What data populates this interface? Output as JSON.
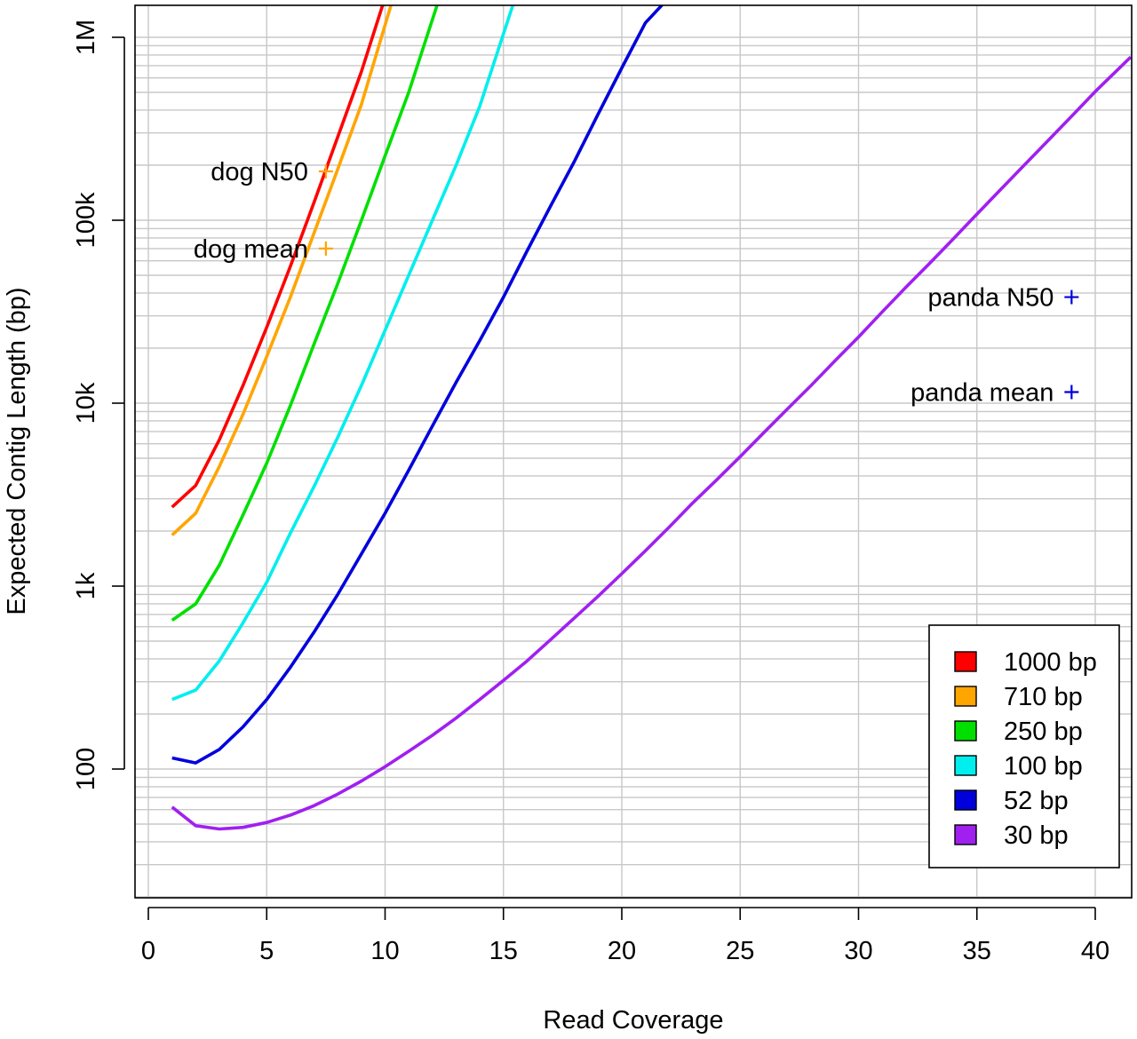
{
  "chart_data": {
    "type": "line",
    "title": "",
    "xlabel": "Read Coverage",
    "ylabel": "Expected Contig Length (bp)",
    "x_scale": "linear",
    "y_scale": "log",
    "xlim": [
      -0.5,
      41.5
    ],
    "ylim": [
      23,
      1500000
    ],
    "grid": true,
    "x_ticks": [
      0,
      5,
      10,
      15,
      20,
      25,
      30,
      35,
      40
    ],
    "y_ticks": [
      {
        "value": 100,
        "label": "100"
      },
      {
        "value": 1000,
        "label": "1k"
      },
      {
        "value": 10000,
        "label": "10k"
      },
      {
        "value": 100000,
        "label": "100k"
      },
      {
        "value": 1000000,
        "label": "1M"
      }
    ],
    "legend_position": "bottom-right",
    "series": [
      {
        "name": "1000 bp",
        "color": "#ff0000",
        "points": [
          [
            1,
            2700
          ],
          [
            2,
            3550
          ],
          [
            3,
            6300
          ],
          [
            4,
            12500
          ],
          [
            5,
            26000
          ],
          [
            6,
            56000
          ],
          [
            7,
            125000
          ],
          [
            8,
            285000
          ],
          [
            9,
            650000
          ],
          [
            9.9,
            1500000
          ]
        ]
      },
      {
        "name": "710 bp",
        "color": "#ffa500",
        "points": [
          [
            1,
            1900
          ],
          [
            2,
            2500
          ],
          [
            3,
            4500
          ],
          [
            4,
            8700
          ],
          [
            5,
            18000
          ],
          [
            6,
            38000
          ],
          [
            7,
            85000
          ],
          [
            8,
            190000
          ],
          [
            9,
            430000
          ],
          [
            10.25,
            1500000
          ]
        ]
      },
      {
        "name": "250 bp",
        "color": "#00e000",
        "points": [
          [
            1,
            650
          ],
          [
            2,
            800
          ],
          [
            3,
            1300
          ],
          [
            4,
            2450
          ],
          [
            5,
            4700
          ],
          [
            6,
            9700
          ],
          [
            7,
            21000
          ],
          [
            8,
            45000
          ],
          [
            9,
            100000
          ],
          [
            10,
            225000
          ],
          [
            11,
            500000
          ],
          [
            12.2,
            1500000
          ]
        ]
      },
      {
        "name": "100 bp",
        "color": "#00eeee",
        "points": [
          [
            1,
            240
          ],
          [
            2,
            270
          ],
          [
            3,
            390
          ],
          [
            4,
            630
          ],
          [
            5,
            1050
          ],
          [
            6,
            1950
          ],
          [
            7,
            3500
          ],
          [
            8,
            6500
          ],
          [
            9,
            12500
          ],
          [
            10,
            25000
          ],
          [
            11,
            50000
          ],
          [
            12,
            100000
          ],
          [
            13,
            200000
          ],
          [
            14,
            420000
          ],
          [
            15.4,
            1500000
          ]
        ]
      },
      {
        "name": "52 bp",
        "color": "#0000dd",
        "points": [
          [
            1,
            115
          ],
          [
            2,
            108
          ],
          [
            3,
            128
          ],
          [
            4,
            170
          ],
          [
            5,
            240
          ],
          [
            6,
            360
          ],
          [
            7,
            560
          ],
          [
            8,
            900
          ],
          [
            9,
            1500
          ],
          [
            10,
            2500
          ],
          [
            11,
            4300
          ],
          [
            12,
            7500
          ],
          [
            13,
            13000
          ],
          [
            14,
            22000
          ],
          [
            15,
            38000
          ],
          [
            16,
            68000
          ],
          [
            17,
            120000
          ],
          [
            18,
            210000
          ],
          [
            19,
            380000
          ],
          [
            20,
            680000
          ],
          [
            21,
            1200000
          ],
          [
            21.7,
            1500000
          ]
        ]
      },
      {
        "name": "30 bp",
        "color": "#a020f0",
        "points": [
          [
            1,
            62
          ],
          [
            2,
            49
          ],
          [
            3,
            47
          ],
          [
            4,
            48
          ],
          [
            5,
            51
          ],
          [
            6,
            56
          ],
          [
            7,
            63
          ],
          [
            8,
            73
          ],
          [
            9,
            86
          ],
          [
            10,
            103
          ],
          [
            11,
            125
          ],
          [
            12,
            153
          ],
          [
            13,
            190
          ],
          [
            14,
            240
          ],
          [
            15,
            305
          ],
          [
            16,
            390
          ],
          [
            17,
            510
          ],
          [
            18,
            670
          ],
          [
            19,
            880
          ],
          [
            20,
            1170
          ],
          [
            21,
            1560
          ],
          [
            22,
            2100
          ],
          [
            23,
            2850
          ],
          [
            24,
            3800
          ],
          [
            25,
            5100
          ],
          [
            26,
            6900
          ],
          [
            27,
            9300
          ],
          [
            28,
            12500
          ],
          [
            29,
            17000
          ],
          [
            30,
            23000
          ],
          [
            31,
            31500
          ],
          [
            32,
            43000
          ],
          [
            33,
            58000
          ],
          [
            34,
            79000
          ],
          [
            35,
            108000
          ],
          [
            36,
            147000
          ],
          [
            37,
            200000
          ],
          [
            38,
            272000
          ],
          [
            39,
            370000
          ],
          [
            40,
            505000
          ],
          [
            41.5,
            780000
          ]
        ]
      }
    ],
    "annotations": [
      {
        "label": "dog N50",
        "x": 7.5,
        "y": 185000,
        "color": "#ffa500"
      },
      {
        "label": "dog mean",
        "x": 7.5,
        "y": 70000,
        "color": "#ffa500"
      },
      {
        "label": "panda N50",
        "x": 39,
        "y": 38000,
        "color": "#0000dd"
      },
      {
        "label": "panda mean",
        "x": 39,
        "y": 11500,
        "color": "#0000dd"
      }
    ]
  }
}
